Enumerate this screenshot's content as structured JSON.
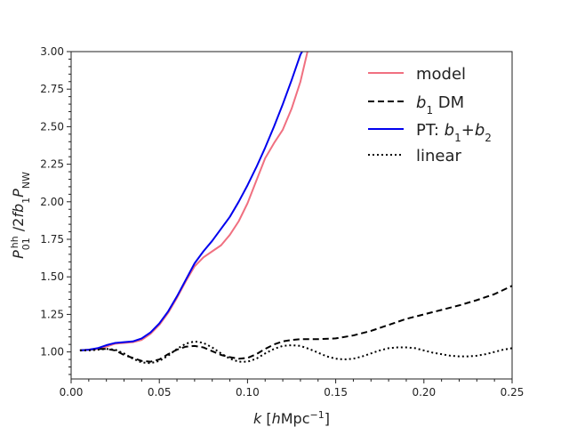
{
  "chart_data": {
    "type": "line",
    "xlabel": "k [hMpc⁻¹]",
    "ylabel": "P₀₁ʰʰ /2fb₁P_NW",
    "xlim": [
      0.0,
      0.25
    ],
    "ylim": [
      0.82,
      3.0
    ],
    "x_ticks": [
      0.0,
      0.05,
      0.1,
      0.15,
      0.2,
      0.25
    ],
    "x_tick_labels": [
      "0.00",
      "0.05",
      "0.10",
      "0.15",
      "0.20",
      "0.25"
    ],
    "y_ticks": [
      1.0,
      1.25,
      1.5,
      1.75,
      2.0,
      2.25,
      2.5,
      2.75,
      3.0
    ],
    "y_tick_labels": [
      "1.00",
      "1.25",
      "1.50",
      "1.75",
      "2.00",
      "2.25",
      "2.50",
      "2.75",
      "3.00"
    ],
    "grid": false,
    "legend_position": "top-right",
    "series": [
      {
        "name": "model",
        "color": "#f07080",
        "style": "solid",
        "points": [
          [
            0.005,
            1.01
          ],
          [
            0.01,
            1.015
          ],
          [
            0.015,
            1.02
          ],
          [
            0.02,
            1.035
          ],
          [
            0.025,
            1.055
          ],
          [
            0.03,
            1.06
          ],
          [
            0.035,
            1.065
          ],
          [
            0.04,
            1.08
          ],
          [
            0.045,
            1.12
          ],
          [
            0.05,
            1.18
          ],
          [
            0.055,
            1.26
          ],
          [
            0.06,
            1.36
          ],
          [
            0.065,
            1.47
          ],
          [
            0.07,
            1.57
          ],
          [
            0.075,
            1.63
          ],
          [
            0.08,
            1.67
          ],
          [
            0.085,
            1.71
          ],
          [
            0.09,
            1.78
          ],
          [
            0.095,
            1.87
          ],
          [
            0.1,
            1.99
          ],
          [
            0.105,
            2.14
          ],
          [
            0.11,
            2.29
          ],
          [
            0.115,
            2.39
          ],
          [
            0.12,
            2.48
          ],
          [
            0.125,
            2.62
          ],
          [
            0.13,
            2.8
          ],
          [
            0.134,
            3.0
          ]
        ]
      },
      {
        "name": "b₁ DM",
        "color": "#000000",
        "style": "dashed",
        "points": [
          [
            0.005,
            1.01
          ],
          [
            0.01,
            1.015
          ],
          [
            0.015,
            1.02
          ],
          [
            0.02,
            1.02
          ],
          [
            0.025,
            1.01
          ],
          [
            0.03,
            0.98
          ],
          [
            0.035,
            0.96
          ],
          [
            0.04,
            0.94
          ],
          [
            0.045,
            0.935
          ],
          [
            0.05,
            0.95
          ],
          [
            0.055,
            0.985
          ],
          [
            0.06,
            1.015
          ],
          [
            0.065,
            1.035
          ],
          [
            0.07,
            1.04
          ],
          [
            0.075,
            1.03
          ],
          [
            0.08,
            1.005
          ],
          [
            0.085,
            0.98
          ],
          [
            0.09,
            0.965
          ],
          [
            0.095,
            0.955
          ],
          [
            0.1,
            0.96
          ],
          [
            0.105,
            0.985
          ],
          [
            0.11,
            1.02
          ],
          [
            0.115,
            1.05
          ],
          [
            0.12,
            1.07
          ],
          [
            0.125,
            1.08
          ],
          [
            0.13,
            1.085
          ],
          [
            0.14,
            1.085
          ],
          [
            0.15,
            1.09
          ],
          [
            0.16,
            1.11
          ],
          [
            0.17,
            1.14
          ],
          [
            0.18,
            1.18
          ],
          [
            0.19,
            1.22
          ],
          [
            0.2,
            1.25
          ],
          [
            0.21,
            1.28
          ],
          [
            0.22,
            1.31
          ],
          [
            0.23,
            1.345
          ],
          [
            0.24,
            1.385
          ],
          [
            0.25,
            1.44
          ]
        ]
      },
      {
        "name": "PT: b₁+b₂",
        "color": "#0000ee",
        "style": "solid",
        "points": [
          [
            0.005,
            1.01
          ],
          [
            0.01,
            1.015
          ],
          [
            0.015,
            1.025
          ],
          [
            0.02,
            1.045
          ],
          [
            0.025,
            1.06
          ],
          [
            0.03,
            1.065
          ],
          [
            0.035,
            1.07
          ],
          [
            0.04,
            1.09
          ],
          [
            0.045,
            1.13
          ],
          [
            0.05,
            1.19
          ],
          [
            0.055,
            1.27
          ],
          [
            0.06,
            1.37
          ],
          [
            0.065,
            1.48
          ],
          [
            0.07,
            1.59
          ],
          [
            0.075,
            1.67
          ],
          [
            0.08,
            1.74
          ],
          [
            0.085,
            1.82
          ],
          [
            0.09,
            1.9
          ],
          [
            0.095,
            2.0
          ],
          [
            0.1,
            2.11
          ],
          [
            0.105,
            2.23
          ],
          [
            0.11,
            2.36
          ],
          [
            0.115,
            2.5
          ],
          [
            0.12,
            2.65
          ],
          [
            0.125,
            2.81
          ],
          [
            0.13,
            2.98
          ],
          [
            0.131,
            3.0
          ]
        ]
      },
      {
        "name": "linear",
        "color": "#000000",
        "style": "dotted",
        "points": [
          [
            0.005,
            1.01
          ],
          [
            0.01,
            1.01
          ],
          [
            0.015,
            1.015
          ],
          [
            0.02,
            1.02
          ],
          [
            0.025,
            1.015
          ],
          [
            0.03,
            0.99
          ],
          [
            0.035,
            0.955
          ],
          [
            0.04,
            0.93
          ],
          [
            0.045,
            0.925
          ],
          [
            0.05,
            0.94
          ],
          [
            0.055,
            0.975
          ],
          [
            0.06,
            1.02
          ],
          [
            0.065,
            1.055
          ],
          [
            0.07,
            1.07
          ],
          [
            0.075,
            1.06
          ],
          [
            0.08,
            1.03
          ],
          [
            0.085,
            0.99
          ],
          [
            0.09,
            0.955
          ],
          [
            0.095,
            0.935
          ],
          [
            0.1,
            0.935
          ],
          [
            0.105,
            0.955
          ],
          [
            0.11,
            0.99
          ],
          [
            0.115,
            1.02
          ],
          [
            0.12,
            1.04
          ],
          [
            0.125,
            1.045
          ],
          [
            0.13,
            1.04
          ],
          [
            0.135,
            1.02
          ],
          [
            0.14,
            0.995
          ],
          [
            0.145,
            0.97
          ],
          [
            0.15,
            0.955
          ],
          [
            0.155,
            0.95
          ],
          [
            0.16,
            0.955
          ],
          [
            0.165,
            0.97
          ],
          [
            0.17,
            0.99
          ],
          [
            0.175,
            1.01
          ],
          [
            0.18,
            1.025
          ],
          [
            0.185,
            1.03
          ],
          [
            0.19,
            1.03
          ],
          [
            0.195,
            1.025
          ],
          [
            0.2,
            1.01
          ],
          [
            0.205,
            0.995
          ],
          [
            0.21,
            0.985
          ],
          [
            0.215,
            0.975
          ],
          [
            0.22,
            0.97
          ],
          [
            0.225,
            0.97
          ],
          [
            0.23,
            0.975
          ],
          [
            0.235,
            0.985
          ],
          [
            0.24,
            1.0
          ],
          [
            0.245,
            1.015
          ],
          [
            0.25,
            1.025
          ]
        ]
      }
    ]
  }
}
